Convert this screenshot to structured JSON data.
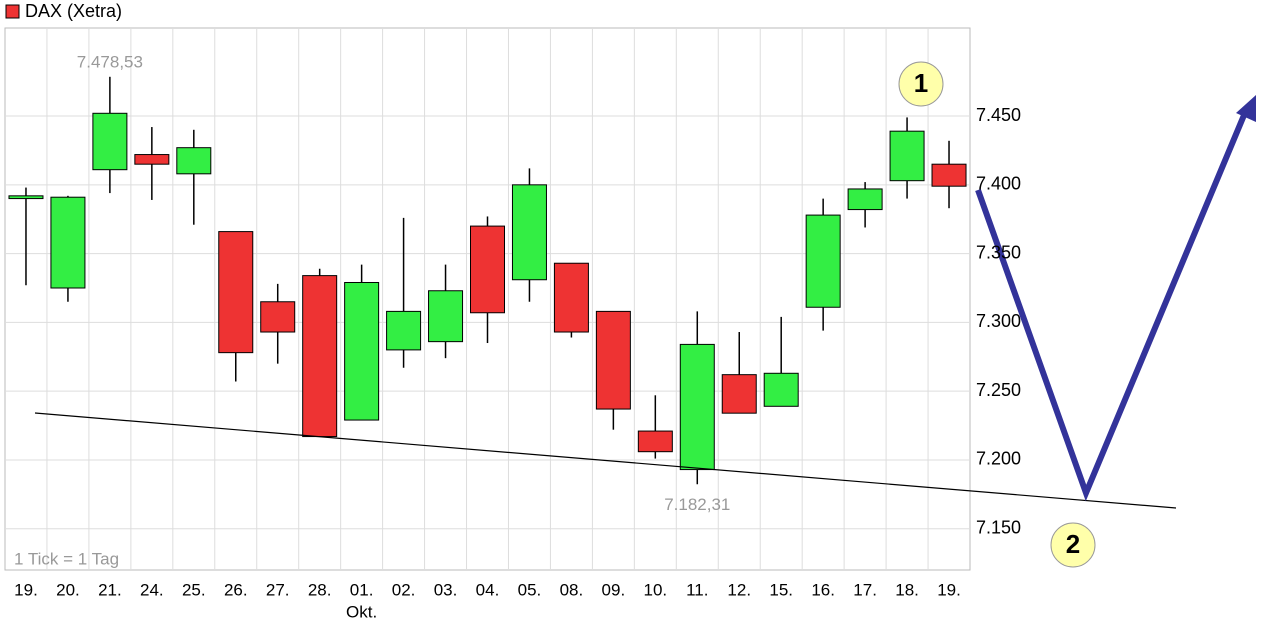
{
  "chart_data": {
    "type": "candlestick",
    "title": "DAX (Xetra)",
    "categories": [
      "19.",
      "20.",
      "21.",
      "24.",
      "25.",
      "26.",
      "27.",
      "28.",
      "01.",
      "02.",
      "03.",
      "04.",
      "05.",
      "08.",
      "09.",
      "10.",
      "11.",
      "12.",
      "15.",
      "16.",
      "17.",
      "18.",
      "19."
    ],
    "x_sublabel": "Okt.",
    "open": [
      7390,
      7325,
      7411,
      7422,
      7408,
      7366,
      7315,
      7334,
      7229,
      7280,
      7286,
      7370,
      7331,
      7343,
      7308,
      7221,
      7193,
      7262,
      7239,
      7311,
      7382,
      7403,
      7415
    ],
    "high": [
      7398,
      7392,
      7478.53,
      7442,
      7440,
      7366,
      7328,
      7339,
      7342,
      7376,
      7342,
      7377,
      7412,
      7343,
      7308,
      7247,
      7308,
      7293,
      7304,
      7390,
      7402,
      7449,
      7432
    ],
    "low": [
      7327,
      7315,
      7394,
      7389,
      7371,
      7257,
      7270,
      7217,
      7229,
      7267,
      7274,
      7285,
      7315,
      7289,
      7222,
      7201,
      7182.31,
      7234,
      7239,
      7294,
      7369,
      7390,
      7383
    ],
    "close": [
      7392,
      7391,
      7452,
      7415,
      7427,
      7278,
      7293,
      7217,
      7329,
      7308,
      7323,
      7307,
      7400,
      7293,
      7237,
      7206,
      7284,
      7234,
      7263,
      7378,
      7397,
      7439,
      7399
    ],
    "up_color": "#33ee44",
    "down_color": "#ee3333",
    "ylim": [
      7120,
      7514
    ],
    "yticks": [
      {
        "value": 7150,
        "label": "7.150"
      },
      {
        "value": 7200,
        "label": "7.200"
      },
      {
        "value": 7250,
        "label": "7.250"
      },
      {
        "value": 7300,
        "label": "7.300"
      },
      {
        "value": 7350,
        "label": "7.350"
      },
      {
        "value": 7400,
        "label": "7.400"
      },
      {
        "value": 7450,
        "label": "7.450"
      }
    ],
    "grid": true,
    "high_label": "7.478,53",
    "low_label": "7.182,31",
    "footnote": "1 Tick = 1 Tag",
    "markers": [
      "1",
      "2"
    ]
  }
}
